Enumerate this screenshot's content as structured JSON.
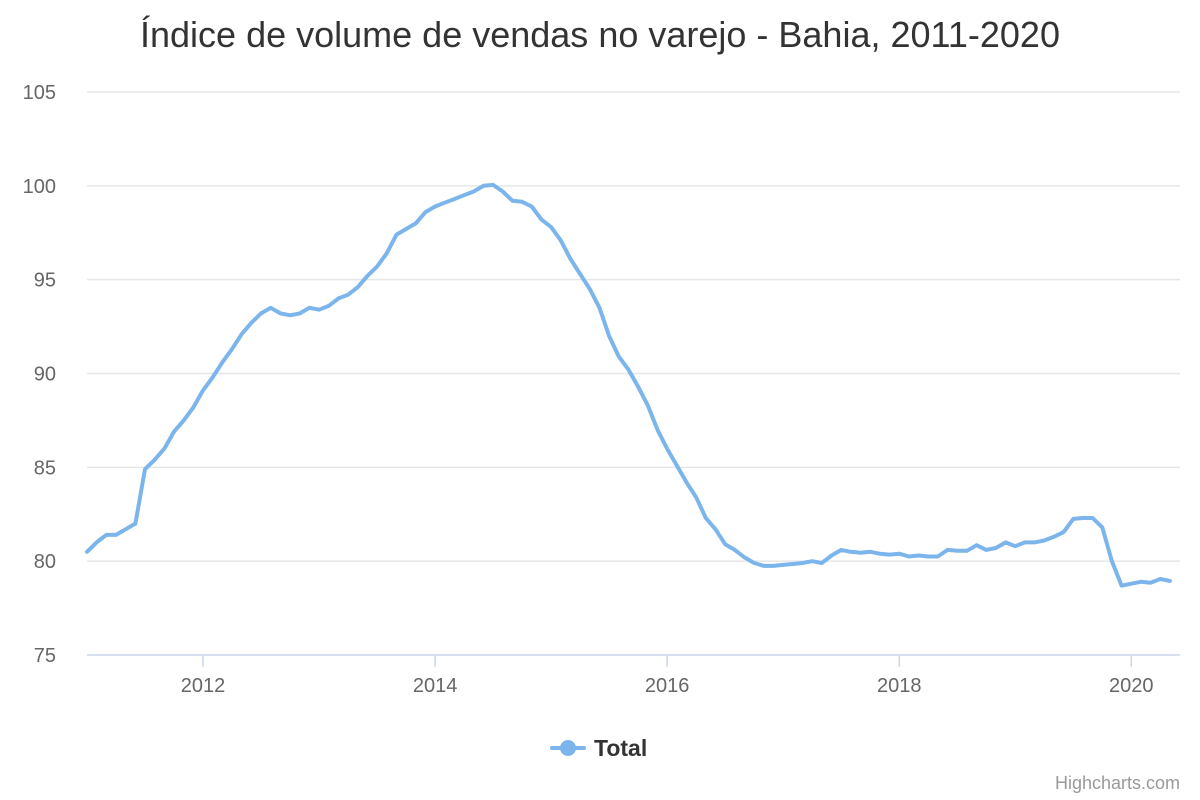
{
  "chart_data": {
    "type": "line",
    "title": "Índice de volume de vendas no varejo - Bahia, 2011-2020",
    "xlabel": "",
    "ylabel": "",
    "xlim": [
      2011.0,
      2020.42
    ],
    "ylim": [
      75,
      105
    ],
    "y_ticks": [
      75,
      80,
      85,
      90,
      95,
      100,
      105
    ],
    "x_ticks": [
      2012,
      2014,
      2016,
      2018,
      2020
    ],
    "grid": true,
    "legend_position": "bottom-center",
    "series": [
      {
        "name": "Total",
        "color": "#7cb5ec",
        "x": [
          2011.0,
          2011.083,
          2011.167,
          2011.25,
          2011.333,
          2011.417,
          2011.5,
          2011.583,
          2011.667,
          2011.75,
          2011.833,
          2011.917,
          2012.0,
          2012.083,
          2012.167,
          2012.25,
          2012.333,
          2012.417,
          2012.5,
          2012.583,
          2012.667,
          2012.75,
          2012.833,
          2012.917,
          2013.0,
          2013.083,
          2013.167,
          2013.25,
          2013.333,
          2013.417,
          2013.5,
          2013.583,
          2013.667,
          2013.75,
          2013.833,
          2013.917,
          2014.0,
          2014.083,
          2014.167,
          2014.25,
          2014.333,
          2014.417,
          2014.5,
          2014.583,
          2014.667,
          2014.75,
          2014.833,
          2014.917,
          2015.0,
          2015.083,
          2015.167,
          2015.25,
          2015.333,
          2015.417,
          2015.5,
          2015.583,
          2015.667,
          2015.75,
          2015.833,
          2015.917,
          2016.0,
          2016.083,
          2016.167,
          2016.25,
          2016.333,
          2016.417,
          2016.5,
          2016.583,
          2016.667,
          2016.75,
          2016.833,
          2016.917,
          2017.0,
          2017.083,
          2017.167,
          2017.25,
          2017.333,
          2017.417,
          2017.5,
          2017.583,
          2017.667,
          2017.75,
          2017.833,
          2017.917,
          2018.0,
          2018.083,
          2018.167,
          2018.25,
          2018.333,
          2018.417,
          2018.5,
          2018.583,
          2018.667,
          2018.75,
          2018.833,
          2018.917,
          2019.0,
          2019.083,
          2019.167,
          2019.25,
          2019.333,
          2019.417,
          2019.5,
          2019.583,
          2019.667,
          2019.75,
          2019.833,
          2019.917,
          2020.0,
          2020.083,
          2020.167,
          2020.25,
          2020.333
        ],
        "values": [
          80.5,
          81.0,
          81.4,
          81.4,
          81.7,
          82.0,
          84.9,
          85.4,
          86.0,
          86.9,
          87.5,
          88.2,
          89.1,
          89.8,
          90.6,
          91.3,
          92.1,
          92.7,
          93.2,
          93.5,
          93.2,
          93.1,
          93.2,
          93.5,
          93.4,
          93.6,
          94.0,
          94.2,
          94.6,
          95.2,
          95.7,
          96.4,
          97.4,
          97.7,
          98.0,
          98.6,
          98.9,
          99.1,
          99.3,
          99.5,
          99.7,
          100.0,
          100.05,
          99.7,
          99.2,
          99.15,
          98.9,
          98.2,
          97.8,
          97.1,
          96.1,
          95.3,
          94.5,
          93.5,
          92.0,
          90.9,
          90.2,
          89.3,
          88.3,
          87.0,
          86.0,
          85.1,
          84.2,
          83.4,
          82.3,
          81.7,
          80.9,
          80.6,
          80.2,
          79.9,
          79.75,
          79.75,
          79.8,
          79.85,
          79.9,
          80.0,
          79.9,
          80.3,
          80.6,
          80.5,
          80.45,
          80.5,
          80.4,
          80.35,
          80.4,
          80.25,
          80.3,
          80.25,
          80.25,
          80.6,
          80.55,
          80.55,
          80.85,
          80.6,
          80.7,
          81.0,
          80.8,
          81.0,
          81.0,
          81.1,
          81.3,
          81.55,
          82.25,
          82.3,
          82.3,
          81.8,
          80.0,
          78.7,
          78.8,
          78.9,
          78.85,
          79.05,
          78.95
        ]
      }
    ]
  },
  "legend": {
    "items": [
      {
        "label": "Total"
      }
    ]
  },
  "credits": "Highcharts.com"
}
